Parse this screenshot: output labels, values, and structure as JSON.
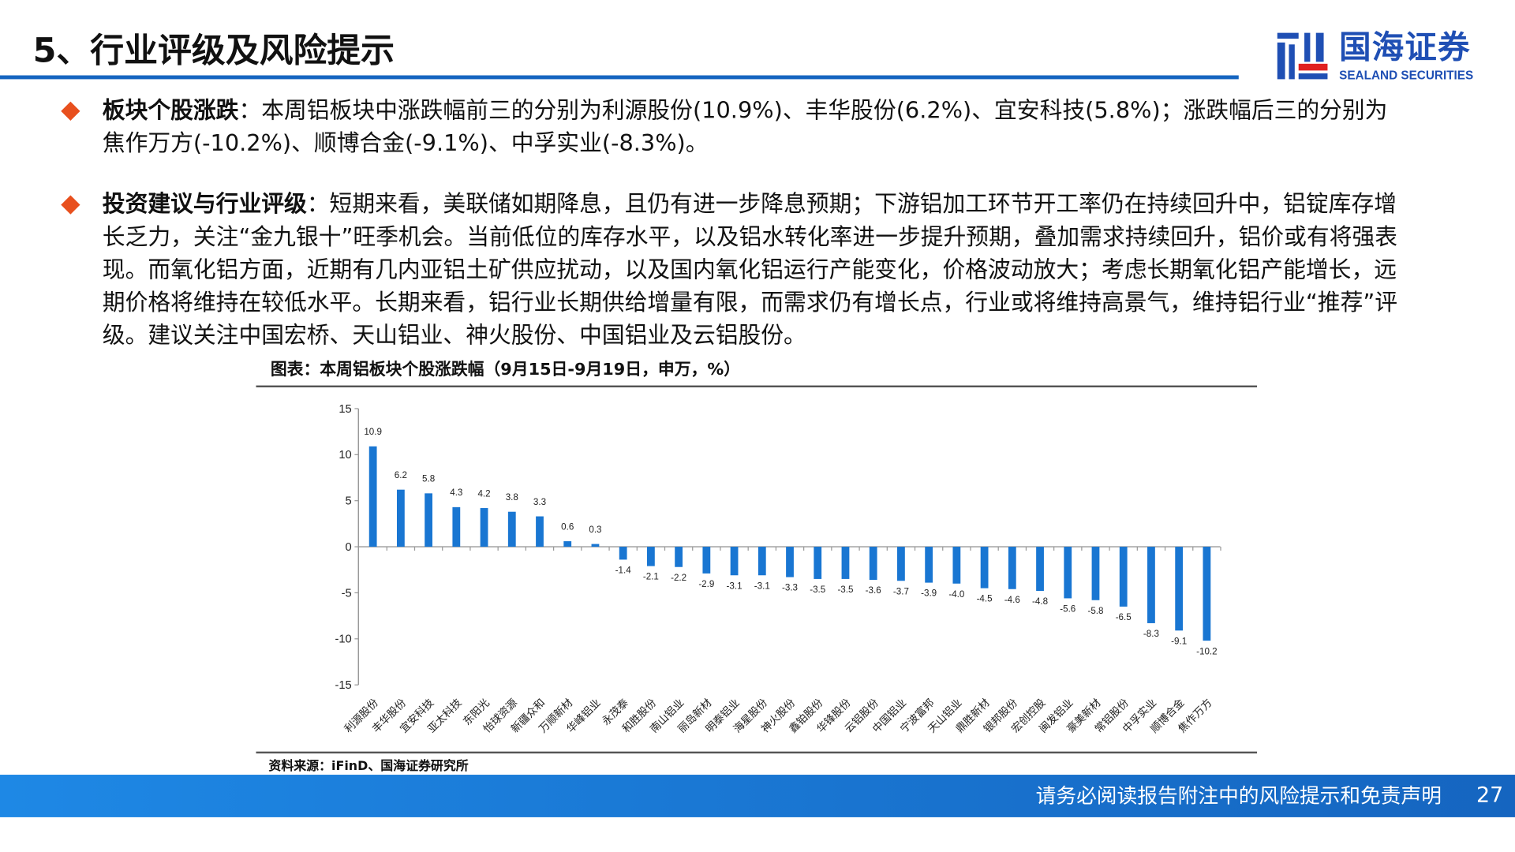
{
  "header": {
    "title": "5、行业评级及风险提示",
    "logo_cn": "国海证券",
    "logo_en": "SEALAND SECURITIES",
    "brand_color": "#1565c0",
    "bullet_color": "#e8501e"
  },
  "bullets": [
    {
      "label": "板块个股涨跌",
      "sep": "：",
      "text": "本周铝板块中涨跌幅前三的分别为利源股份(10.9%)、丰华股份(6.2%)、宜安科技(5.8%)；涨跌幅后三的分别为焦作万方(-10.2%)、顺博合金(-9.1%)、中孚实业(-8.3%)。"
    },
    {
      "label": "投资建议与行业评级",
      "sep": "：",
      "text": "短期来看，美联储如期降息，且仍有进一步降息预期；下游铝加工环节开工率仍在持续回升中，铝锭库存增长乏力，关注“金九银十”旺季机会。当前低位的库存水平，以及铝水转化率进一步提升预期，叠加需求持续回升，铝价或有将强表现。而氧化铝方面，近期有几内亚铝土矿供应扰动，以及国内氧化铝运行产能变化，价格波动放大；考虑长期氧化铝产能增长，远期价格将维持在较低水平。长期来看，铝行业长期供给增量有限，而需求仍有增长点，行业或将维持高景气，维持铝行业“推荐”评级。建议关注中国宏桥、天山铝业、神火股份、中国铝业及云铝股份。"
    }
  ],
  "chart_data": {
    "type": "bar",
    "title": "图表：本周铝板块个股涨跌幅（9月15日-9月19日，申万，%）",
    "categories": [
      "利源股份",
      "丰华股份",
      "宜安科技",
      "亚太科技",
      "东阳光",
      "怡球资源",
      "新疆众和",
      "万顺新材",
      "华峰铝业",
      "永茂泰",
      "和胜股份",
      "南山铝业",
      "丽岛新材",
      "明泰铝业",
      "海星股份",
      "神火股份",
      "鑫铂股份",
      "华锋股份",
      "云铝股份",
      "中国铝业",
      "宁波富邦",
      "天山铝业",
      "鼎胜新材",
      "银邦股份",
      "宏创控股",
      "闽发铝业",
      "豪美新材",
      "常铝股份",
      "中孚实业",
      "顺博合金",
      "焦作万方"
    ],
    "values": [
      10.9,
      6.2,
      5.8,
      4.3,
      4.2,
      3.8,
      3.3,
      0.6,
      0.3,
      -1.4,
      -2.1,
      -2.2,
      -2.9,
      -3.1,
      -3.1,
      -3.3,
      -3.5,
      -3.5,
      -3.6,
      -3.7,
      -3.9,
      -4.0,
      -4.5,
      -4.6,
      -4.8,
      -5.6,
      -5.8,
      -6.5,
      -8.3,
      -9.1,
      -10.2
    ],
    "ylim": [
      -15,
      15
    ],
    "yticks": [
      15,
      10,
      5,
      0,
      -5,
      -10,
      -15
    ],
    "bar_color": "#1976d2",
    "grid": false,
    "source": "资料来源：iFinD、国海证券研究所"
  },
  "footer": {
    "disclaimer": "请务必阅读报告附注中的风险提示和免责声明",
    "page": "27"
  }
}
